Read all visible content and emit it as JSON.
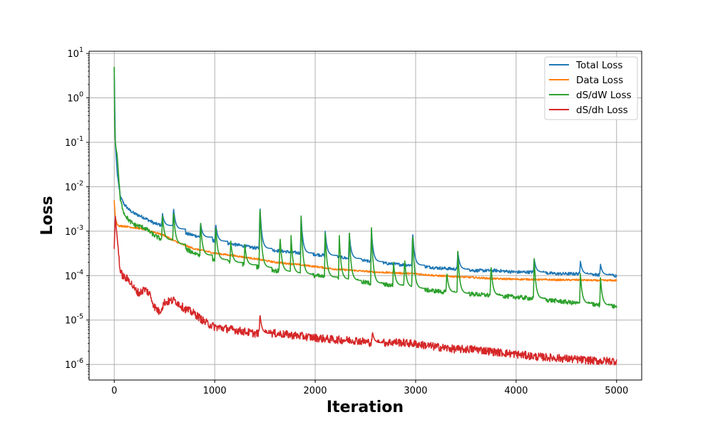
{
  "chart_data": {
    "type": "line",
    "xlabel": "Iteration",
    "ylabel": "Loss",
    "xlim": [
      -250,
      5250
    ],
    "ylim_log10": [
      -6.35,
      1.05
    ],
    "yscale": "log",
    "grid": true,
    "legend_position": "top-right",
    "x_ticks": [
      0,
      1000,
      2000,
      3000,
      4000,
      5000
    ],
    "x_tick_labels": [
      "0",
      "1000",
      "2000",
      "3000",
      "4000",
      "5000"
    ],
    "y_ticks_exp": [
      1,
      0,
      -1,
      -2,
      -3,
      -4,
      -5,
      -6
    ],
    "y_tick_labels": [
      "10^1",
      "10^0",
      "10^-1",
      "10^-2",
      "10^-3",
      "10^-4",
      "10^-5",
      "10^-6"
    ],
    "series": [
      {
        "name": "Total Loss",
        "color": "#1f77b4",
        "x": [
          0,
          10,
          30,
          60,
          100,
          150,
          200,
          300,
          400,
          500,
          600,
          700,
          800,
          1000,
          1200,
          1400,
          1600,
          1800,
          2000,
          2200,
          2400,
          2600,
          2800,
          3000,
          3200,
          3400,
          3600,
          3800,
          4000,
          4200,
          4400,
          4600,
          4800,
          5000
        ],
        "values": [
          4.5,
          0.1,
          0.02,
          0.006,
          0.004,
          0.003,
          0.0025,
          0.002,
          0.0015,
          0.0013,
          0.0011,
          0.0009,
          0.0008,
          0.0006,
          0.0005,
          0.00042,
          0.00037,
          0.00033,
          0.0003,
          0.00027,
          0.00023,
          0.0002,
          0.00018,
          0.00017,
          0.00015,
          0.00014,
          0.00013,
          0.00013,
          0.00012,
          0.00012,
          0.00011,
          0.00011,
          0.000105,
          0.0001
        ],
        "spikes": [
          [
            480,
            0.0025
          ],
          [
            590,
            0.0035
          ],
          [
            860,
            0.0015
          ],
          [
            1010,
            0.0015
          ],
          [
            1450,
            0.004
          ],
          [
            1860,
            0.0022
          ],
          [
            2100,
            0.001
          ],
          [
            2340,
            0.0009
          ],
          [
            2560,
            0.0011
          ],
          [
            2970,
            0.001
          ],
          [
            3420,
            0.00035
          ],
          [
            4180,
            0.00024
          ],
          [
            4640,
            0.00021
          ],
          [
            4840,
            0.00018
          ]
        ]
      },
      {
        "name": "Data Loss",
        "color": "#ff7f0e",
        "x": [
          0,
          10,
          30,
          60,
          100,
          200,
          300,
          400,
          500,
          600,
          700,
          800,
          1000,
          1200,
          1400,
          1600,
          1800,
          2000,
          2200,
          2400,
          2600,
          2800,
          3000,
          3200,
          3400,
          3600,
          3800,
          4000,
          4200,
          4400,
          4600,
          4800,
          5000
        ],
        "values": [
          0.005,
          0.002,
          0.0014,
          0.0013,
          0.0013,
          0.0012,
          0.0011,
          0.00095,
          0.0008,
          0.0006,
          0.00048,
          0.0004,
          0.00032,
          0.00028,
          0.00024,
          0.0002,
          0.00018,
          0.00016,
          0.00014,
          0.00013,
          0.00012,
          0.000115,
          0.00011,
          0.0001,
          9.5e-05,
          9e-05,
          8.5e-05,
          8.3e-05,
          8.2e-05,
          8e-05,
          8e-05,
          7.8e-05,
          7.8e-05
        ]
      },
      {
        "name": "dS/dW Loss",
        "color": "#2ca02c",
        "x": [
          0,
          5,
          15,
          30,
          60,
          100,
          150,
          200,
          300,
          400,
          500,
          600,
          700,
          800,
          1000,
          1200,
          1400,
          1600,
          1800,
          2000,
          2200,
          2400,
          2600,
          2800,
          3000,
          3200,
          3400,
          3600,
          3800,
          4000,
          4200,
          4400,
          4600,
          4800,
          5000
        ],
        "values": [
          5,
          0.15,
          0.08,
          0.05,
          0.005,
          0.0025,
          0.0017,
          0.0014,
          0.0012,
          0.0008,
          0.0006,
          0.0005,
          0.0004,
          0.00032,
          0.00023,
          0.00019,
          0.00016,
          0.00013,
          0.00011,
          0.0001,
          8.5e-05,
          7.5e-05,
          6.5e-05,
          6e-05,
          5e-05,
          4.5e-05,
          4e-05,
          3.8e-05,
          3.5e-05,
          3.3e-05,
          3e-05,
          2.7e-05,
          2.4e-05,
          2.2e-05,
          2e-05
        ],
        "spikes": [
          [
            480,
            0.0022
          ],
          [
            590,
            0.003
          ],
          [
            860,
            0.0015
          ],
          [
            1010,
            0.0014
          ],
          [
            1160,
            0.0006
          ],
          [
            1300,
            0.0005
          ],
          [
            1450,
            0.0042
          ],
          [
            1650,
            0.0008
          ],
          [
            1760,
            0.0008
          ],
          [
            1860,
            0.0022
          ],
          [
            2100,
            0.0009
          ],
          [
            2240,
            0.0008
          ],
          [
            2340,
            0.0009
          ],
          [
            2560,
            0.0012
          ],
          [
            2780,
            0.0002
          ],
          [
            2890,
            0.00025
          ],
          [
            2970,
            0.001
          ],
          [
            3310,
            0.00012
          ],
          [
            3420,
            0.00035
          ],
          [
            3750,
            0.00018
          ],
          [
            4180,
            0.00024
          ],
          [
            4640,
            0.00011
          ],
          [
            4840,
            9e-05
          ]
        ]
      },
      {
        "name": "dS/dh Loss",
        "color": "#d62728",
        "x": [
          0,
          10,
          20,
          40,
          60,
          100,
          150,
          200,
          250,
          300,
          350,
          400,
          450,
          500,
          600,
          700,
          800,
          900,
          1000,
          1200,
          1400,
          1600,
          1800,
          2000,
          2200,
          2400,
          2600,
          2800,
          3000,
          3200,
          3400,
          3600,
          3800,
          4000,
          4200,
          4400,
          4600,
          4800,
          5000
        ],
        "values": [
          0.0004,
          0.0025,
          0.0012,
          0.0004,
          0.00012,
          9e-05,
          8e-05,
          5e-05,
          4e-05,
          5e-05,
          4e-05,
          2e-05,
          1.5e-05,
          2.5e-05,
          2.8e-05,
          1.8e-05,
          1.4e-05,
          9e-06,
          7e-06,
          6e-06,
          5e-06,
          5e-06,
          4.5e-06,
          4e-06,
          3.6e-06,
          3.5e-06,
          3e-06,
          3.2e-06,
          2.9e-06,
          2.5e-06,
          2.2e-06,
          2.2e-06,
          1.9e-06,
          1.7e-06,
          1.5e-06,
          1.4e-06,
          1.3e-06,
          1.2e-06,
          1.2e-06
        ],
        "spikes": [
          [
            1450,
            1.4e-05
          ],
          [
            2570,
            5.5e-06
          ]
        ]
      }
    ]
  }
}
